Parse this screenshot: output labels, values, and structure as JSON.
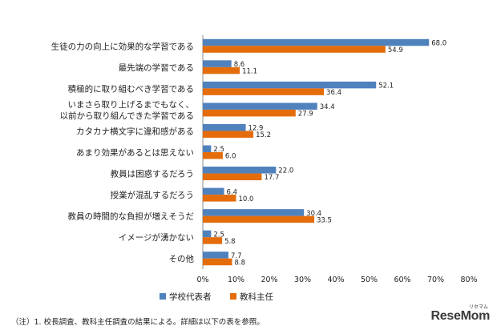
{
  "chart_data": {
    "type": "bar",
    "orientation": "horizontal",
    "categories": [
      "生徒の力の向上に効果的な学習である",
      "最先端の学習である",
      "積極的に取り組むべき学習である",
      "いまさら取り上げるまでもなく、\n以前から取り組んできた学習である",
      "カタカナ横文字に違和感がある",
      "あまり効果があるとは思えない",
      "教員は困惑するだろう",
      "授業が混乱するだろう",
      "教員の時間的な負担が増えそうだ",
      "イメージが湧かない",
      "その他"
    ],
    "series": [
      {
        "name": "学校代表者",
        "color": "#4f81bd",
        "values": [
          68.0,
          8.6,
          52.1,
          34.4,
          12.9,
          2.5,
          22.0,
          6.4,
          30.4,
          2.5,
          7.7
        ]
      },
      {
        "name": "教科主任",
        "color": "#e46c0a",
        "values": [
          54.9,
          11.1,
          36.4,
          27.9,
          15.2,
          6.0,
          17.7,
          10.0,
          33.5,
          5.8,
          8.8
        ]
      }
    ],
    "xlim": [
      0,
      80
    ],
    "xticks": [
      "0%",
      "10%",
      "20%",
      "30%",
      "40%",
      "50%",
      "60%",
      "70%",
      "80%"
    ],
    "grid": false,
    "legend": "bottom"
  },
  "note": "（注）1. 校長調査、教科主任調査の結果による。詳細は以下の表を参照。",
  "watermark": {
    "text": "ReseMom",
    "ruby": "リセマム"
  }
}
